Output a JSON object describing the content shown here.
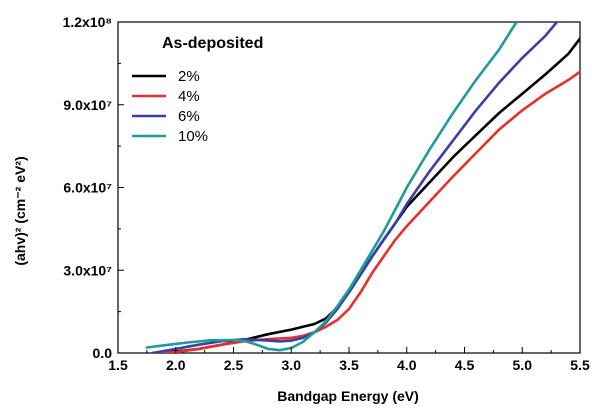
{
  "chart_data": {
    "type": "line",
    "title": "",
    "xlabel": "Bandgap Energy (eV)",
    "ylabel": "(ahv)² (cm⁻² eV²)",
    "xlim": [
      1.5,
      5.5
    ],
    "ylim": [
      0,
      120000000
    ],
    "x_ticks": [
      "1.5",
      "2.0",
      "2.5",
      "3.0",
      "3.5",
      "4.0",
      "4.5",
      "5.0",
      "5.5"
    ],
    "x_tick_values": [
      1.5,
      2.0,
      2.5,
      3.0,
      3.5,
      4.0,
      4.5,
      5.0,
      5.5
    ],
    "y_ticks": [
      "0.0",
      "3.0x10⁷",
      "6.0x10⁷",
      "9.0x10⁷",
      "1.2x10⁸"
    ],
    "y_tick_values": [
      0,
      30000000,
      60000000,
      90000000,
      120000000
    ],
    "grid": false,
    "legend": {
      "title": "As-deposited",
      "placement": "top-left"
    },
    "series": [
      {
        "name": "2%",
        "color": "#000000",
        "points": [
          [
            1.8,
            0
          ],
          [
            2.0,
            500000
          ],
          [
            2.2,
            1500000
          ],
          [
            2.4,
            3000000
          ],
          [
            2.6,
            4800000
          ],
          [
            2.8,
            6800000
          ],
          [
            3.0,
            8500000
          ],
          [
            3.2,
            10500000
          ],
          [
            3.3,
            12500000
          ],
          [
            3.4,
            16500000
          ],
          [
            3.5,
            22000000
          ],
          [
            3.6,
            28500000
          ],
          [
            3.7,
            35000000
          ],
          [
            3.8,
            41000000
          ],
          [
            3.9,
            47000000
          ],
          [
            4.0,
            53000000
          ],
          [
            4.2,
            62000000
          ],
          [
            4.4,
            71000000
          ],
          [
            4.6,
            79000000
          ],
          [
            4.8,
            87000000
          ],
          [
            5.0,
            94000000
          ],
          [
            5.2,
            101000000
          ],
          [
            5.4,
            108500000
          ],
          [
            5.5,
            114000000
          ]
        ]
      },
      {
        "name": "4%",
        "color": "#e8302a",
        "points": [
          [
            1.8,
            0
          ],
          [
            2.0,
            300000
          ],
          [
            2.2,
            1500000
          ],
          [
            2.4,
            3000000
          ],
          [
            2.6,
            4300000
          ],
          [
            2.8,
            5000000
          ],
          [
            3.0,
            5500000
          ],
          [
            3.1,
            6200000
          ],
          [
            3.2,
            7500000
          ],
          [
            3.3,
            9500000
          ],
          [
            3.4,
            12000000
          ],
          [
            3.5,
            16000000
          ],
          [
            3.6,
            22000000
          ],
          [
            3.7,
            29000000
          ],
          [
            3.8,
            35000000
          ],
          [
            3.9,
            41000000
          ],
          [
            4.0,
            46000000
          ],
          [
            4.2,
            55000000
          ],
          [
            4.4,
            64000000
          ],
          [
            4.6,
            72500000
          ],
          [
            4.8,
            81000000
          ],
          [
            5.0,
            88000000
          ],
          [
            5.2,
            94000000
          ],
          [
            5.4,
            99000000
          ],
          [
            5.5,
            102000000
          ]
        ]
      },
      {
        "name": "6%",
        "color": "#3a3fa5",
        "points": [
          [
            1.8,
            0
          ],
          [
            2.0,
            1500000
          ],
          [
            2.2,
            3000000
          ],
          [
            2.4,
            4300000
          ],
          [
            2.6,
            5000000
          ],
          [
            2.8,
            4500000
          ],
          [
            2.9,
            4200000
          ],
          [
            3.0,
            4500000
          ],
          [
            3.1,
            5500000
          ],
          [
            3.2,
            7500000
          ],
          [
            3.3,
            11000000
          ],
          [
            3.4,
            16000000
          ],
          [
            3.5,
            22000000
          ],
          [
            3.6,
            28500000
          ],
          [
            3.7,
            35000000
          ],
          [
            3.8,
            41000000
          ],
          [
            3.9,
            47000000
          ],
          [
            4.0,
            54000000
          ],
          [
            4.2,
            66000000
          ],
          [
            4.4,
            77000000
          ],
          [
            4.6,
            88000000
          ],
          [
            4.8,
            98000000
          ],
          [
            5.0,
            107000000
          ],
          [
            5.2,
            115000000
          ],
          [
            5.3,
            120000000
          ]
        ]
      },
      {
        "name": "10%",
        "color": "#1f9b9a",
        "points": [
          [
            1.75,
            2000000
          ],
          [
            1.9,
            2800000
          ],
          [
            2.1,
            3800000
          ],
          [
            2.3,
            4600000
          ],
          [
            2.5,
            4700000
          ],
          [
            2.6,
            4300000
          ],
          [
            2.7,
            3000000
          ],
          [
            2.8,
            1500000
          ],
          [
            2.9,
            1000000
          ],
          [
            3.0,
            1800000
          ],
          [
            3.1,
            4000000
          ],
          [
            3.2,
            7500000
          ],
          [
            3.3,
            11500000
          ],
          [
            3.4,
            17000000
          ],
          [
            3.5,
            23000000
          ],
          [
            3.6,
            30000000
          ],
          [
            3.7,
            37000000
          ],
          [
            3.8,
            44000000
          ],
          [
            3.9,
            52000000
          ],
          [
            4.0,
            60000000
          ],
          [
            4.2,
            74000000
          ],
          [
            4.4,
            87000000
          ],
          [
            4.6,
            99000000
          ],
          [
            4.8,
            110000000
          ],
          [
            4.95,
            120000000
          ]
        ]
      }
    ]
  }
}
